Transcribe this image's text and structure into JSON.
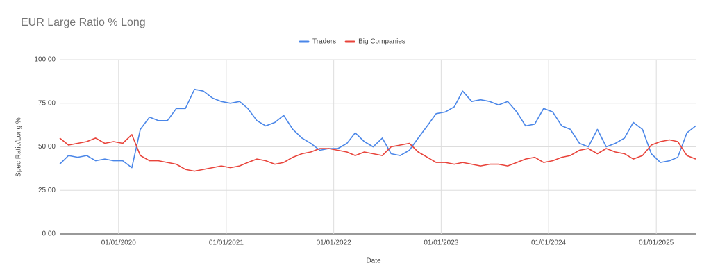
{
  "chart_data": {
    "type": "line",
    "title": "EUR Large Ratio % Long",
    "x_label": "Date",
    "y_label": "Spec Ratio/Long %",
    "x": [
      "2019-06-15",
      "2019-07-15",
      "2019-08-15",
      "2019-09-15",
      "2019-10-15",
      "2019-11-15",
      "2019-12-15",
      "2020-01-15",
      "2020-02-15",
      "2020-03-15",
      "2020-04-15",
      "2020-05-15",
      "2020-06-15",
      "2020-07-15",
      "2020-08-15",
      "2020-09-15",
      "2020-10-15",
      "2020-11-15",
      "2020-12-15",
      "2021-01-15",
      "2021-02-15",
      "2021-03-15",
      "2021-04-15",
      "2021-05-15",
      "2021-06-15",
      "2021-07-15",
      "2021-08-15",
      "2021-09-15",
      "2021-10-15",
      "2021-11-15",
      "2021-12-15",
      "2022-01-15",
      "2022-02-15",
      "2022-03-15",
      "2022-04-15",
      "2022-05-15",
      "2022-06-15",
      "2022-07-15",
      "2022-08-15",
      "2022-09-15",
      "2022-10-15",
      "2022-11-15",
      "2022-12-15",
      "2023-01-15",
      "2023-02-15",
      "2023-03-15",
      "2023-04-15",
      "2023-05-15",
      "2023-06-15",
      "2023-07-15",
      "2023-08-15",
      "2023-09-15",
      "2023-10-15",
      "2023-11-15",
      "2023-12-15",
      "2024-01-15",
      "2024-02-15",
      "2024-03-15",
      "2024-04-15",
      "2024-05-15",
      "2024-06-15",
      "2024-07-15",
      "2024-08-15",
      "2024-09-15",
      "2024-10-15",
      "2024-11-15",
      "2024-12-15",
      "2025-01-15",
      "2025-02-15",
      "2025-03-15",
      "2025-04-15",
      "2025-05-15"
    ],
    "series": [
      {
        "name": "Traders",
        "color": "#4a86e8",
        "values": [
          40,
          45,
          44,
          45,
          42,
          43,
          42,
          42,
          38,
          60,
          67,
          65,
          65,
          72,
          72,
          83,
          82,
          78,
          76,
          75,
          76,
          72,
          65,
          62,
          64,
          68,
          60,
          55,
          52,
          48,
          49,
          49,
          52,
          58,
          53,
          50,
          55,
          46,
          45,
          48,
          55,
          62,
          69,
          70,
          73,
          82,
          76,
          77,
          76,
          74,
          76,
          70,
          62,
          63,
          72,
          70,
          62,
          60,
          52,
          50,
          60,
          50,
          52,
          55,
          64,
          60,
          46,
          41,
          42,
          44,
          58,
          62
        ]
      },
      {
        "name": "Big Companies",
        "color": "#e8433a",
        "values": [
          55,
          51,
          52,
          53,
          55,
          52,
          53,
          52,
          57,
          45,
          42,
          42,
          41,
          40,
          37,
          36,
          37,
          38,
          39,
          38,
          39,
          41,
          43,
          42,
          40,
          41,
          44,
          46,
          47,
          49,
          49,
          48,
          47,
          45,
          47,
          46,
          45,
          50,
          51,
          52,
          47,
          44,
          41,
          41,
          40,
          41,
          40,
          39,
          40,
          40,
          39,
          41,
          43,
          44,
          41,
          42,
          44,
          45,
          48,
          49,
          46,
          49,
          47,
          46,
          43,
          45,
          51,
          53,
          54,
          53,
          45,
          43
        ]
      }
    ],
    "xlim": [
      "2019-06-15",
      "2025-05-15"
    ],
    "xticks": [
      {
        "value": "2020-01-01",
        "label": "01/01/2020"
      },
      {
        "value": "2021-01-01",
        "label": "01/01/2021"
      },
      {
        "value": "2022-01-01",
        "label": "01/01/2022"
      },
      {
        "value": "2023-01-01",
        "label": "01/01/2023"
      },
      {
        "value": "2024-01-01",
        "label": "01/01/2024"
      },
      {
        "value": "2025-01-01",
        "label": "01/01/2025"
      }
    ],
    "ylim": [
      0,
      100
    ],
    "yticks": [
      {
        "value": 0,
        "label": "0.00"
      },
      {
        "value": 25,
        "label": "25.00"
      },
      {
        "value": 50,
        "label": "50.00"
      },
      {
        "value": 75,
        "label": "75.00"
      },
      {
        "value": 100,
        "label": "100.00"
      }
    ],
    "grid": true,
    "legend": "top"
  }
}
